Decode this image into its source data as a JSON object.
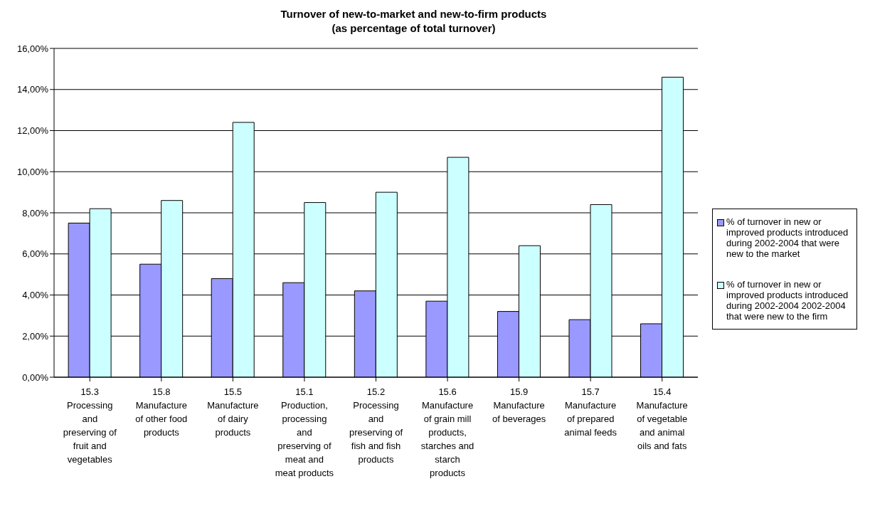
{
  "chart_data": {
    "type": "bar",
    "title": "Turnover of new-to-market and new-to-firm products",
    "subtitle": "(as percentage of total turnover)",
    "categories": [
      "15.3 Processing and preserving of fruit and vegetables",
      "15.8 Manufacture of other food products",
      "15.5 Manufacture of dairy products",
      "15.1 Production, processing and preserving of meat and meat products",
      "15.2 Processing and preserving of fish and fish products",
      "15.6 Manufacture of grain mill products, starches and starch products",
      "15.9 Manufacture of beverages",
      "15.7 Manufacture of prepared animal feeds",
      "15.4 Manufacture of vegetable and animal oils and fats"
    ],
    "series": [
      {
        "name": "% of turnover in new or improved products introduced during 2002-2004 that were new to the market",
        "color": "#9999ff",
        "values": [
          7.5,
          5.5,
          4.8,
          4.6,
          4.2,
          3.7,
          3.2,
          2.8,
          2.6
        ]
      },
      {
        "name": "% of turnover in  new or improved products introduced during 2002-2004 2002-2004 that were new to the firm",
        "color": "#ccffff",
        "values": [
          8.2,
          8.6,
          12.4,
          8.5,
          9.0,
          10.7,
          6.4,
          8.4,
          14.6
        ]
      }
    ],
    "ylim": [
      0,
      16
    ],
    "yticks": [
      {
        "value": 0,
        "label": "0,00%"
      },
      {
        "value": 2,
        "label": "2,00%"
      },
      {
        "value": 4,
        "label": "4,00%"
      },
      {
        "value": 6,
        "label": "6,00%"
      },
      {
        "value": 8,
        "label": "8,00%"
      },
      {
        "value": 10,
        "label": "10,00%"
      },
      {
        "value": 12,
        "label": "12,00%"
      },
      {
        "value": 14,
        "label": "14,00%"
      },
      {
        "value": 16,
        "label": "16,00%"
      }
    ],
    "grid": "y",
    "legend": "right"
  }
}
